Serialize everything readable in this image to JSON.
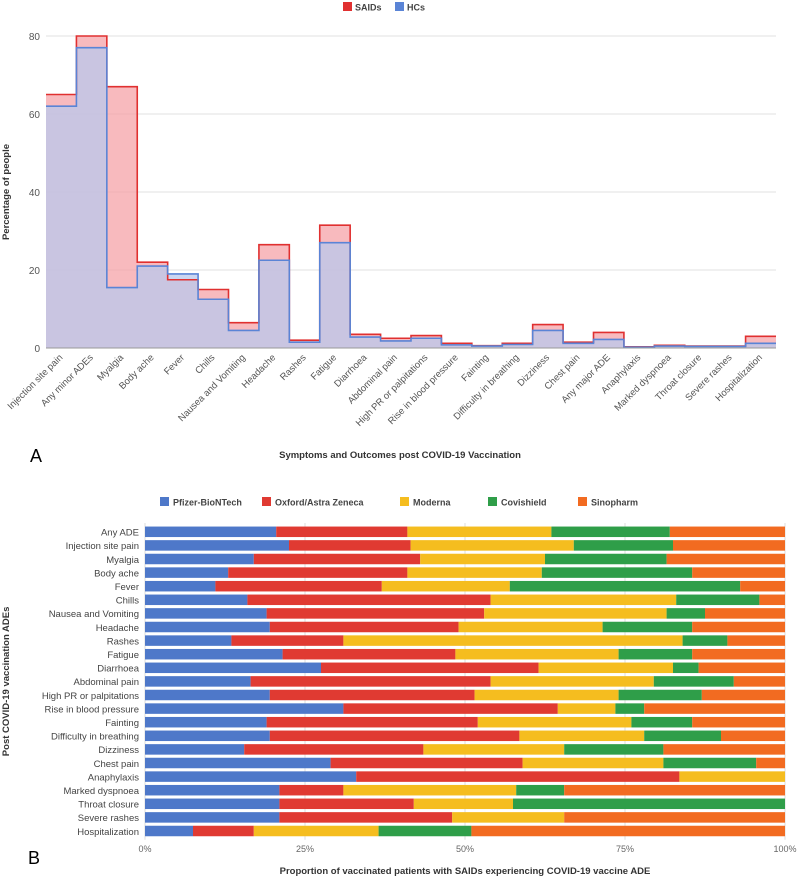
{
  "panel_labels": [
    "A",
    "B"
  ],
  "chart_data": [
    {
      "type": "area",
      "style": "step",
      "legend_position": "top",
      "xlabel": "Symptoms and Outcomes post COVID-19 Vaccination",
      "ylabel": "Percentage of people",
      "ylim": [
        0,
        80
      ],
      "yticks": [
        0,
        20,
        40,
        60,
        80
      ],
      "grid": true,
      "categories": [
        "Injection site pain",
        "Any minor ADEs",
        "Myalgia",
        "Body ache",
        "Fever",
        "Chills",
        "Nausea and Vomiting",
        "Headache",
        "Rashes",
        "Fatigue",
        "Diarrhoea",
        "Abdominal pain",
        "High PR or palpitations",
        "Rise in blood pressure",
        "Fainting",
        "Difficulty in breathing",
        "Dizziness",
        "Chest pain",
        "Any major ADE",
        "Anaphylaxis",
        "Marked dyspnoea",
        "Throat closure",
        "Severe rashes",
        "Hospitalization"
      ],
      "series": [
        {
          "name": "SAIDs",
          "color": "#e03030",
          "fill": "#f5a3a8",
          "values": [
            65,
            80,
            67,
            22,
            17.5,
            15,
            6.5,
            26.5,
            2,
            31.5,
            3.5,
            2.5,
            3.2,
            1.2,
            0.6,
            1.2,
            6,
            1.5,
            4,
            0.3,
            0.7,
            0.5,
            0.5,
            3
          ]
        },
        {
          "name": "HCs",
          "color": "#5a84d6",
          "fill": "#b9c8ec",
          "values": [
            62,
            77,
            15.5,
            21,
            19,
            12.5,
            4.5,
            22.5,
            1.5,
            27,
            2.8,
            1.8,
            2.5,
            0.8,
            0.5,
            0.9,
            4.5,
            1.2,
            2.2,
            0.2,
            0.5,
            0.4,
            0.4,
            1.2
          ]
        }
      ]
    },
    {
      "type": "bar",
      "orientation": "horizontal",
      "stacked": "percent",
      "legend_position": "top",
      "xlabel": "Proportion of vaccinated patients with SAIDs experiencing COVID-19 vaccine ADE",
      "ylabel": "Post COVID-19 vaccination ADEs",
      "xlim": [
        0,
        100
      ],
      "xticks": [
        "0%",
        "25%",
        "50%",
        "75%",
        "100%"
      ],
      "grid": true,
      "categories": [
        "Any ADE",
        "Injection site pain",
        "Myalgia",
        "Body ache",
        "Fever",
        "Chills",
        "Nausea and Vomiting",
        "Headache",
        "Rashes",
        "Fatigue",
        "Diarrhoea",
        "Abdominal pain",
        "High PR or palpitations",
        "Rise in blood pressure",
        "Fainting",
        "Difficulty in breathing",
        "Dizziness",
        "Chest pain",
        "Anaphylaxis",
        "Marked dyspnoea",
        "Throat closure",
        "Severe rashes",
        "Hospitalization"
      ],
      "series": [
        {
          "name": "Pfizer-BioNTech",
          "color": "#4e78c9",
          "values": [
            20.5,
            22.5,
            17,
            13,
            11,
            16,
            19,
            19.5,
            13.5,
            21.5,
            27.5,
            16.5,
            19.5,
            31,
            19,
            19.5,
            15.5,
            29,
            33,
            21,
            21,
            21,
            7.5
          ]
        },
        {
          "name": "Oxford/Astra Zeneca",
          "color": "#e03a32",
          "values": [
            20.5,
            19,
            26,
            28,
            26,
            38,
            34,
            29.5,
            17.5,
            27,
            34,
            37.5,
            32,
            33.5,
            33,
            39,
            28,
            30,
            50.5,
            10,
            21,
            27,
            9.5
          ]
        },
        {
          "name": "Moderna",
          "color": "#f5bd1f",
          "values": [
            22.5,
            25.5,
            19.5,
            21,
            20,
            29,
            28.5,
            22.5,
            53,
            25.5,
            21,
            25.5,
            22.5,
            9,
            24,
            19.5,
            22,
            22,
            16.5,
            27,
            15.5,
            17.5,
            19.5
          ]
        },
        {
          "name": "Covishield",
          "color": "#2f9e49",
          "values": [
            18.5,
            15.5,
            19,
            23.5,
            36,
            13,
            6,
            14,
            7,
            11.5,
            4,
            12.5,
            13,
            4.5,
            9.5,
            12,
            15.5,
            14.5,
            0,
            7.5,
            42.5,
            0,
            14.5
          ]
        },
        {
          "name": "Sinopharm",
          "color": "#f26b21",
          "values": [
            18,
            17.5,
            18.5,
            14.5,
            7,
            4,
            12.5,
            14.5,
            9,
            14.5,
            13.5,
            8,
            13,
            22,
            14.5,
            10,
            19,
            4.5,
            0,
            34.5,
            0,
            34.5,
            49
          ]
        }
      ]
    }
  ]
}
